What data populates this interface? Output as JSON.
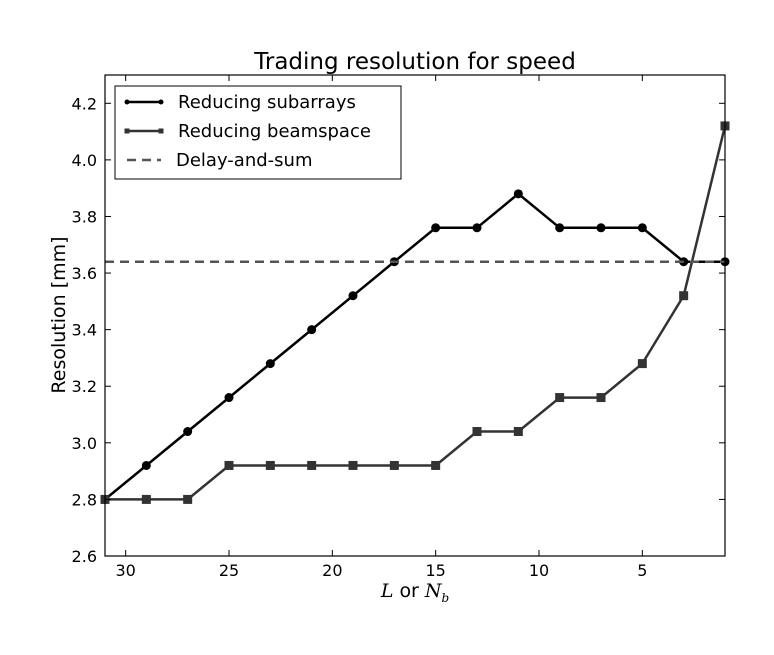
{
  "chart_data": {
    "type": "line",
    "title": "Trading resolution for speed",
    "xlabel": {
      "var1": "L",
      "joiner": "or",
      "var2": "N",
      "var2_sub": "b"
    },
    "ylabel": "Resolution [mm]",
    "xlim": [
      31,
      1
    ],
    "ylim": [
      2.6,
      4.3
    ],
    "x_reversed": true,
    "x_ticks": [
      30,
      25,
      20,
      15,
      10,
      5
    ],
    "x_tick_labels": [
      "30",
      "25",
      "20",
      "15",
      "10",
      "5"
    ],
    "y_ticks": [
      2.6,
      2.8,
      3.0,
      3.2,
      3.4,
      3.6,
      3.8,
      4.0,
      4.2
    ],
    "y_tick_labels": [
      "2.6",
      "2.8",
      "3.0",
      "3.2",
      "3.4",
      "3.6",
      "3.8",
      "4.0",
      "4.2"
    ],
    "grid": false,
    "legend_position": "upper-left",
    "series": [
      {
        "name": "Reducing subarrays",
        "marker": "circle",
        "style": "solid",
        "color": "#000000",
        "x": [
          31,
          29,
          27,
          25,
          23,
          21,
          19,
          17,
          15,
          13,
          11,
          9,
          7,
          5,
          3,
          1
        ],
        "y": [
          2.8,
          2.92,
          3.04,
          3.16,
          3.28,
          3.4,
          3.52,
          3.64,
          3.76,
          3.76,
          3.88,
          3.76,
          3.76,
          3.76,
          3.64,
          3.64
        ]
      },
      {
        "name": "Reducing beamspace",
        "marker": "square",
        "style": "solid",
        "color": "#333333",
        "x": [
          31,
          29,
          27,
          25,
          23,
          21,
          19,
          17,
          15,
          13,
          11,
          9,
          7,
          5,
          3,
          1
        ],
        "y": [
          2.8,
          2.8,
          2.8,
          2.92,
          2.92,
          2.92,
          2.92,
          2.92,
          2.92,
          3.04,
          3.04,
          3.16,
          3.16,
          3.28,
          3.52,
          4.12
        ]
      },
      {
        "name": "Delay-and-sum",
        "marker": "none",
        "style": "dashed",
        "color": "#555555",
        "x": [
          31,
          1
        ],
        "y": [
          3.64,
          3.64
        ]
      }
    ]
  }
}
